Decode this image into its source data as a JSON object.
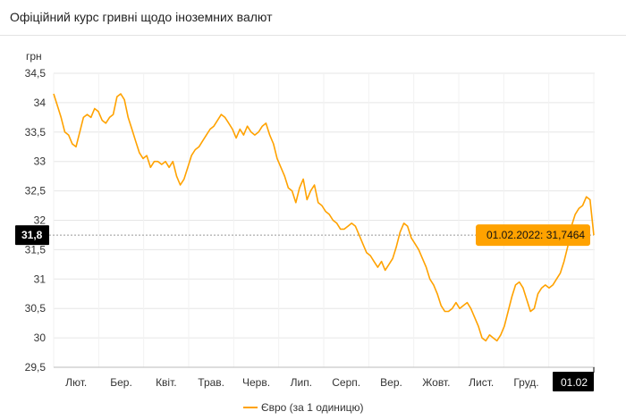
{
  "page": {
    "title": "Офіційний курс гривні щодо іноземних валют"
  },
  "colors": {
    "series": "#ffa200",
    "current_badge": "#000000",
    "tooltip_bg": "#ffa200",
    "grid": "#e6e6e6"
  },
  "chart_data": {
    "type": "line",
    "title": "Офіційний курс гривні щодо іноземних валют",
    "ylabel": "грн",
    "ylim": [
      29.5,
      34.5
    ],
    "yticks": [
      "29,5",
      "30",
      "30,5",
      "31",
      "31,5",
      "32",
      "32,5",
      "33",
      "33,5",
      "34",
      "34,5"
    ],
    "xticks": [
      "Лют.",
      "Бер.",
      "Квіт.",
      "Трав.",
      "Черв.",
      "Лип.",
      "Серп.",
      "Вер.",
      "Жовт.",
      "Лист.",
      "Груд."
    ],
    "x_end_label": "01.02",
    "current_value_label": "31,8",
    "tooltip": "01.02.2022: 31,7464",
    "grid": true,
    "legend_position": "bottom",
    "series": [
      {
        "name": "Євро (за 1 одиницю)",
        "start": "2021-02-01",
        "end": "2022-02-01",
        "values": [
          34.15,
          33.95,
          33.75,
          33.5,
          33.45,
          33.3,
          33.25,
          33.5,
          33.75,
          33.8,
          33.75,
          33.9,
          33.85,
          33.7,
          33.65,
          33.75,
          33.8,
          34.1,
          34.15,
          34.05,
          33.75,
          33.55,
          33.35,
          33.15,
          33.05,
          33.1,
          32.9,
          33.0,
          33.0,
          32.95,
          33.0,
          32.9,
          33.0,
          32.75,
          32.6,
          32.7,
          32.9,
          33.1,
          33.2,
          33.25,
          33.35,
          33.45,
          33.55,
          33.6,
          33.7,
          33.8,
          33.75,
          33.65,
          33.55,
          33.4,
          33.55,
          33.45,
          33.6,
          33.5,
          33.45,
          33.5,
          33.6,
          33.65,
          33.45,
          33.3,
          33.05,
          32.9,
          32.75,
          32.55,
          32.5,
          32.3,
          32.55,
          32.7,
          32.35,
          32.5,
          32.6,
          32.3,
          32.25,
          32.15,
          32.1,
          32.0,
          31.95,
          31.85,
          31.85,
          31.9,
          31.95,
          31.9,
          31.75,
          31.6,
          31.45,
          31.4,
          31.3,
          31.2,
          31.3,
          31.15,
          31.25,
          31.35,
          31.55,
          31.8,
          31.95,
          31.9,
          31.7,
          31.6,
          31.5,
          31.35,
          31.2,
          31.0,
          30.9,
          30.75,
          30.55,
          30.45,
          30.45,
          30.5,
          30.6,
          30.5,
          30.55,
          30.6,
          30.5,
          30.35,
          30.2,
          30.0,
          29.95,
          30.05,
          30.0,
          29.95,
          30.05,
          30.2,
          30.45,
          30.7,
          30.9,
          30.95,
          30.85,
          30.65,
          30.45,
          30.5,
          30.75,
          30.85,
          30.9,
          30.85,
          30.9,
          31.0,
          31.1,
          31.3,
          31.55,
          31.9,
          32.1,
          32.2,
          32.25,
          32.4,
          32.35,
          31.7464
        ]
      }
    ]
  }
}
